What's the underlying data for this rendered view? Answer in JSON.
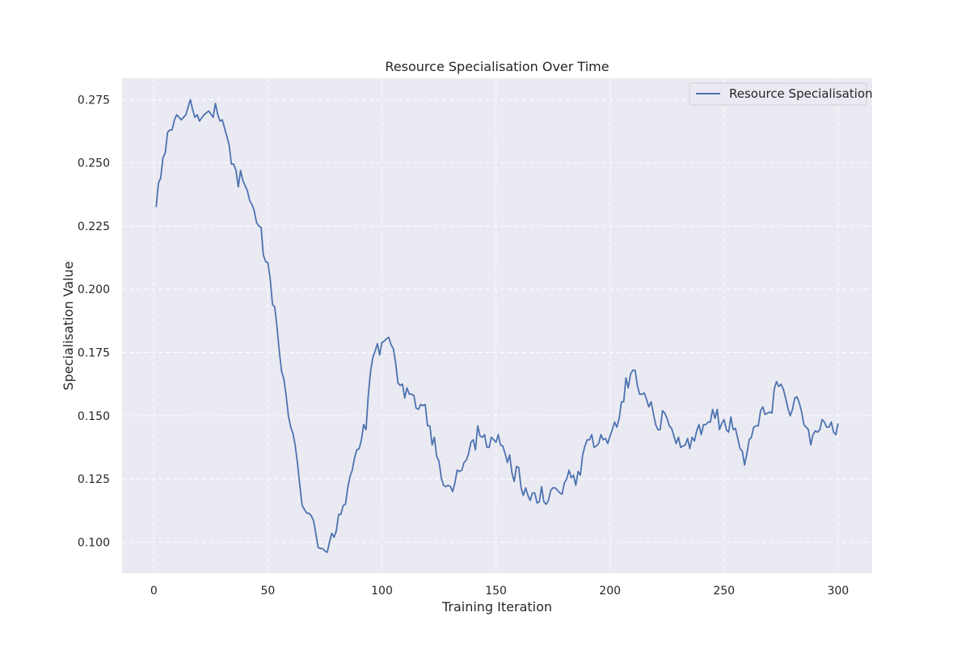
{
  "chart_data": {
    "type": "line",
    "title": "Resource Specialisation Over Time",
    "xlabel": "Training Iteration",
    "ylabel": "Specialisation Value",
    "xlim": [
      -13.95,
      314.95
    ],
    "ylim": [
      0.0877,
      0.2834
    ],
    "xticks": [
      0,
      50,
      100,
      150,
      200,
      250,
      300
    ],
    "yticks": [
      0.1,
      0.125,
      0.15,
      0.175,
      0.2,
      0.225,
      0.25,
      0.275
    ],
    "xtick_labels": [
      "0",
      "50",
      "100",
      "150",
      "200",
      "250",
      "300"
    ],
    "ytick_labels": [
      "0.100",
      "0.125",
      "0.150",
      "0.175",
      "0.200",
      "0.225",
      "0.250",
      "0.275"
    ],
    "grid": true,
    "legend_position": "top-right",
    "colors": {
      "plot_bg": "#eaeaf2",
      "grid": "#ffffff",
      "line": "#4c72b0"
    },
    "series": [
      {
        "name": "Resource Specialisation",
        "keypoints": [
          [
            1,
            0.2325
          ],
          [
            2,
            0.242
          ],
          [
            3,
            0.244
          ],
          [
            4,
            0.252
          ],
          [
            5,
            0.254
          ],
          [
            6,
            0.262
          ],
          [
            7,
            0.263
          ],
          [
            8,
            0.263
          ],
          [
            9,
            0.267
          ],
          [
            10,
            0.269
          ],
          [
            12,
            0.267
          ],
          [
            14,
            0.269
          ],
          [
            16,
            0.275
          ],
          [
            17,
            0.271
          ],
          [
            18,
            0.268
          ],
          [
            19,
            0.269
          ],
          [
            20,
            0.2665
          ],
          [
            22,
            0.269
          ],
          [
            24,
            0.2705
          ],
          [
            26,
            0.268
          ],
          [
            27,
            0.2735
          ],
          [
            28,
            0.269
          ],
          [
            29,
            0.2665
          ],
          [
            30,
            0.267
          ],
          [
            32,
            0.2605
          ],
          [
            33,
            0.257
          ],
          [
            34,
            0.2495
          ],
          [
            35,
            0.2495
          ],
          [
            36,
            0.247
          ],
          [
            37,
            0.2405
          ],
          [
            38,
            0.247
          ],
          [
            39,
            0.243
          ],
          [
            41,
            0.239
          ],
          [
            42,
            0.235
          ],
          [
            43,
            0.2335
          ],
          [
            44,
            0.231
          ],
          [
            45,
            0.2265
          ],
          [
            46,
            0.225
          ],
          [
            47,
            0.2245
          ],
          [
            48,
            0.2135
          ],
          [
            49,
            0.211
          ],
          [
            50,
            0.2105
          ],
          [
            51,
            0.204
          ],
          [
            52,
            0.194
          ],
          [
            53,
            0.193
          ],
          [
            54,
            0.185
          ],
          [
            55,
            0.1755
          ],
          [
            56,
            0.1675
          ],
          [
            57,
            0.1645
          ],
          [
            58,
            0.158
          ],
          [
            59,
            0.15
          ],
          [
            60,
            0.1455
          ],
          [
            61,
            0.143
          ],
          [
            62,
            0.138
          ],
          [
            63,
            0.131
          ],
          [
            64,
            0.1225
          ],
          [
            65,
            0.1145
          ],
          [
            66,
            0.113
          ],
          [
            67,
            0.1115
          ],
          [
            68,
            0.1115
          ],
          [
            69,
            0.1105
          ],
          [
            70,
            0.1085
          ],
          [
            71,
            0.1035
          ],
          [
            72,
            0.098
          ],
          [
            73,
            0.0975
          ],
          [
            74,
            0.0975
          ],
          [
            75,
            0.0965
          ],
          [
            76,
            0.096
          ],
          [
            77,
            0.1
          ],
          [
            78,
            0.1035
          ],
          [
            79,
            0.102
          ],
          [
            80,
            0.1045
          ],
          [
            81,
            0.111
          ],
          [
            82,
            0.111
          ],
          [
            83,
            0.1145
          ],
          [
            84,
            0.115
          ],
          [
            85,
            0.1215
          ],
          [
            86,
            0.126
          ],
          [
            87,
            0.1285
          ],
          [
            88,
            0.1335
          ],
          [
            89,
            0.1365
          ],
          [
            90,
            0.137
          ],
          [
            91,
            0.1405
          ],
          [
            92,
            0.1465
          ],
          [
            93,
            0.1445
          ],
          [
            94,
            0.158
          ],
          [
            95,
            0.1675
          ],
          [
            96,
            0.173
          ],
          [
            97,
            0.1755
          ],
          [
            98,
            0.1785
          ],
          [
            99,
            0.174
          ],
          [
            100,
            0.179
          ],
          [
            101,
            0.1795
          ],
          [
            102,
            0.1805
          ],
          [
            103,
            0.181
          ],
          [
            104,
            0.178
          ],
          [
            105,
            0.1765
          ],
          [
            106,
            0.171
          ],
          [
            107,
            0.163
          ],
          [
            108,
            0.162
          ],
          [
            109,
            0.1625
          ],
          [
            110,
            0.157
          ],
          [
            111,
            0.161
          ],
          [
            112,
            0.1585
          ],
          [
            113,
            0.1585
          ],
          [
            114,
            0.158
          ],
          [
            115,
            0.153
          ],
          [
            116,
            0.1525
          ],
          [
            117,
            0.1545
          ],
          [
            118,
            0.154
          ],
          [
            119,
            0.1545
          ],
          [
            120,
            0.146
          ],
          [
            121,
            0.146
          ],
          [
            122,
            0.1385
          ],
          [
            123,
            0.1415
          ],
          [
            124,
            0.134
          ],
          [
            125,
            0.132
          ],
          [
            126,
            0.1255
          ],
          [
            127,
            0.1225
          ],
          [
            128,
            0.122
          ],
          [
            129,
            0.1225
          ],
          [
            130,
            0.122
          ],
          [
            131,
            0.12
          ],
          [
            132,
            0.1235
          ],
          [
            133,
            0.1285
          ],
          [
            134,
            0.128
          ],
          [
            135,
            0.1285
          ],
          [
            136,
            0.1315
          ],
          [
            137,
            0.1325
          ],
          [
            138,
            0.135
          ],
          [
            139,
            0.1395
          ],
          [
            140,
            0.1405
          ],
          [
            141,
            0.1365
          ],
          [
            142,
            0.146
          ],
          [
            143,
            0.142
          ],
          [
            144,
            0.1415
          ],
          [
            145,
            0.1425
          ],
          [
            146,
            0.1375
          ],
          [
            147,
            0.1375
          ],
          [
            148,
            0.1415
          ],
          [
            149,
            0.1405
          ],
          [
            150,
            0.1395
          ],
          [
            151,
            0.1425
          ],
          [
            152,
            0.1385
          ],
          [
            153,
            0.138
          ],
          [
            154,
            0.135
          ],
          [
            155,
            0.1315
          ],
          [
            156,
            0.1345
          ],
          [
            157,
            0.1275
          ],
          [
            158,
            0.124
          ],
          [
            159,
            0.13
          ],
          [
            160,
            0.1295
          ],
          [
            161,
            0.1215
          ],
          [
            162,
            0.1185
          ],
          [
            163,
            0.1215
          ],
          [
            164,
            0.1185
          ],
          [
            165,
            0.1165
          ],
          [
            166,
            0.1195
          ],
          [
            167,
            0.1195
          ],
          [
            168,
            0.1155
          ],
          [
            169,
            0.116
          ],
          [
            170,
            0.122
          ],
          [
            171,
            0.116
          ],
          [
            172,
            0.115
          ],
          [
            173,
            0.1165
          ],
          [
            174,
            0.1205
          ],
          [
            175,
            0.1215
          ],
          [
            176,
            0.1215
          ],
          [
            177,
            0.1205
          ],
          [
            178,
            0.1195
          ],
          [
            179,
            0.119
          ],
          [
            180,
            0.1235
          ],
          [
            181,
            0.125
          ],
          [
            182,
            0.1285
          ],
          [
            183,
            0.1255
          ],
          [
            184,
            0.1265
          ],
          [
            185,
            0.1225
          ],
          [
            186,
            0.128
          ],
          [
            187,
            0.1265
          ],
          [
            188,
            0.1345
          ],
          [
            189,
            0.138
          ],
          [
            190,
            0.1405
          ],
          [
            191,
            0.1405
          ],
          [
            192,
            0.1425
          ],
          [
            193,
            0.1375
          ],
          [
            194,
            0.138
          ],
          [
            195,
            0.139
          ],
          [
            196,
            0.1425
          ],
          [
            197,
            0.1405
          ],
          [
            198,
            0.141
          ],
          [
            199,
            0.139
          ],
          [
            200,
            0.142
          ],
          [
            201,
            0.1445
          ],
          [
            202,
            0.1475
          ],
          [
            203,
            0.1455
          ],
          [
            204,
            0.149
          ],
          [
            205,
            0.1555
          ],
          [
            206,
            0.1555
          ],
          [
            207,
            0.165
          ],
          [
            208,
            0.161
          ],
          [
            209,
            0.1665
          ],
          [
            210,
            0.168
          ],
          [
            211,
            0.168
          ],
          [
            212,
            0.162
          ],
          [
            213,
            0.1585
          ],
          [
            214,
            0.1585
          ],
          [
            215,
            0.159
          ],
          [
            216,
            0.1565
          ],
          [
            217,
            0.1535
          ],
          [
            218,
            0.1555
          ],
          [
            219,
            0.151
          ],
          [
            220,
            0.1465
          ],
          [
            221,
            0.1445
          ],
          [
            222,
            0.1445
          ],
          [
            223,
            0.152
          ],
          [
            224,
            0.151
          ],
          [
            225,
            0.149
          ],
          [
            226,
            0.146
          ],
          [
            227,
            0.145
          ],
          [
            228,
            0.142
          ],
          [
            229,
            0.139
          ],
          [
            230,
            0.1415
          ],
          [
            231,
            0.1375
          ],
          [
            232,
            0.138
          ],
          [
            233,
            0.1385
          ],
          [
            234,
            0.141
          ],
          [
            235,
            0.137
          ],
          [
            236,
            0.1415
          ],
          [
            237,
            0.14
          ],
          [
            238,
            0.144
          ],
          [
            239,
            0.1465
          ],
          [
            240,
            0.1425
          ],
          [
            241,
            0.1465
          ],
          [
            242,
            0.1465
          ],
          [
            243,
            0.1475
          ],
          [
            244,
            0.1475
          ],
          [
            245,
            0.1525
          ],
          [
            246,
            0.149
          ],
          [
            247,
            0.1525
          ],
          [
            248,
            0.1445
          ],
          [
            249,
            0.147
          ],
          [
            250,
            0.1485
          ],
          [
            251,
            0.1445
          ],
          [
            252,
            0.1435
          ],
          [
            253,
            0.1495
          ],
          [
            254,
            0.1445
          ],
          [
            255,
            0.145
          ],
          [
            256,
            0.141
          ],
          [
            257,
            0.137
          ],
          [
            258,
            0.136
          ],
          [
            259,
            0.1305
          ],
          [
            260,
            0.135
          ],
          [
            261,
            0.1405
          ],
          [
            262,
            0.1415
          ],
          [
            263,
            0.1455
          ],
          [
            264,
            0.146
          ],
          [
            265,
            0.146
          ],
          [
            266,
            0.152
          ],
          [
            267,
            0.1535
          ],
          [
            268,
            0.1505
          ],
          [
            269,
            0.151
          ],
          [
            270,
            0.1515
          ],
          [
            271,
            0.151
          ],
          [
            272,
            0.1605
          ],
          [
            273,
            0.1635
          ],
          [
            274,
            0.1615
          ],
          [
            275,
            0.1625
          ],
          [
            276,
            0.1605
          ],
          [
            277,
            0.157
          ],
          [
            278,
            0.153
          ],
          [
            279,
            0.15
          ],
          [
            280,
            0.1525
          ],
          [
            281,
            0.157
          ],
          [
            282,
            0.1575
          ],
          [
            283,
            0.155
          ],
          [
            284,
            0.1515
          ],
          [
            285,
            0.1465
          ],
          [
            286,
            0.1455
          ],
          [
            287,
            0.1445
          ],
          [
            288,
            0.1385
          ],
          [
            289,
            0.1425
          ],
          [
            290,
            0.144
          ],
          [
            291,
            0.1435
          ],
          [
            292,
            0.1445
          ],
          [
            293,
            0.1485
          ],
          [
            294,
            0.1475
          ],
          [
            295,
            0.1455
          ],
          [
            296,
            0.1455
          ],
          [
            297,
            0.1475
          ],
          [
            298,
            0.1435
          ],
          [
            299,
            0.1425
          ],
          [
            300,
            0.147
          ]
        ]
      }
    ]
  }
}
